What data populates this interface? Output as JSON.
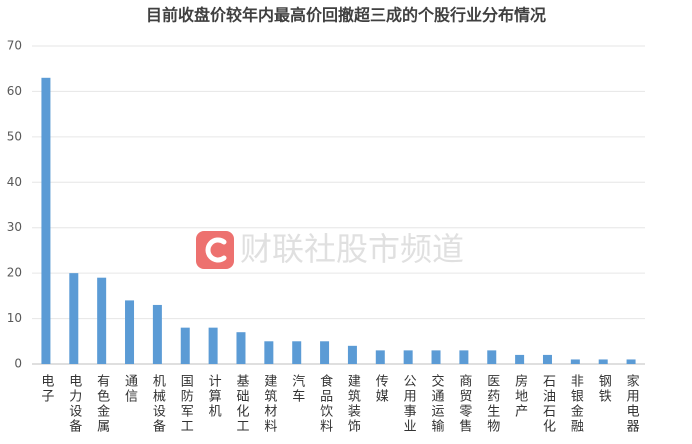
{
  "chart_data": {
    "type": "bar",
    "title": "目前收盘价较年内最高价回撤超三成的个股行业分布情况",
    "watermark": "财联社股市频道",
    "categories": [
      "电子",
      "电力设备",
      "有色金属",
      "通信",
      "机械设备",
      "国防军工",
      "计算机",
      "基础化工",
      "建筑材料",
      "汽车",
      "食品饮料",
      "建筑装饰",
      "传媒",
      "公用事业",
      "交通运输",
      "商贸零售",
      "医药生物",
      "房地产",
      "石油石化",
      "非银金融",
      "钢铁",
      "家用电器"
    ],
    "values": [
      63,
      20,
      19,
      14,
      13,
      8,
      8,
      7,
      5,
      5,
      5,
      4,
      3,
      3,
      3,
      3,
      3,
      2,
      2,
      1,
      1,
      1
    ],
    "color": "#5b9bd5",
    "ylim": [
      0,
      70
    ],
    "yticks": [
      0,
      10,
      20,
      30,
      40,
      50,
      60,
      70
    ],
    "grid": true
  }
}
